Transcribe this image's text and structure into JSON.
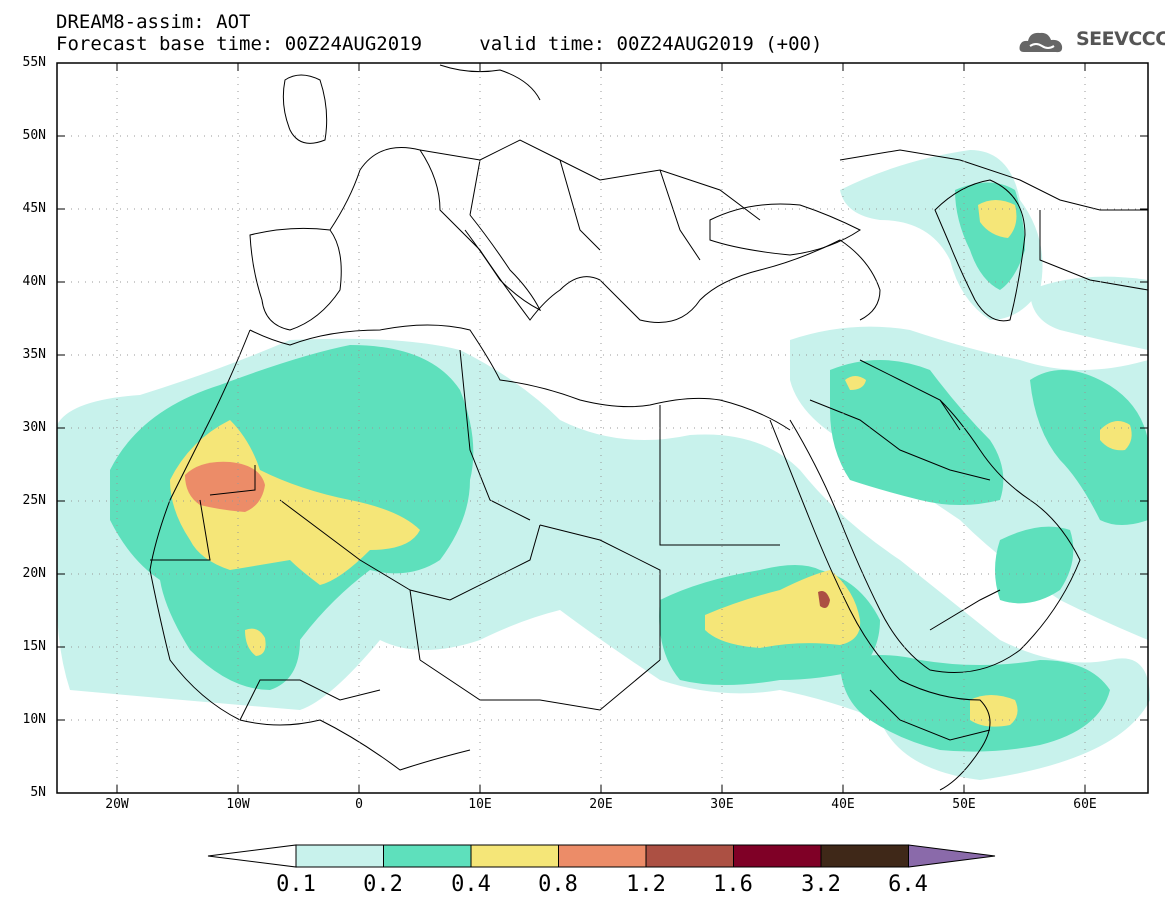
{
  "header": {
    "title": "DREAM8-assim: AOT",
    "base_time_label": "Forecast base time: 00Z24AUG2019",
    "valid_time_label": "valid time: 00Z24AUG2019 (+00)",
    "logo_text": "SEEVCCC"
  },
  "map": {
    "lat_labels": [
      "55N",
      "50N",
      "45N",
      "40N",
      "35N",
      "30N",
      "25N",
      "20N",
      "15N",
      "10N",
      "5N"
    ],
    "lon_labels": [
      "20W",
      "10W",
      "0",
      "10E",
      "20E",
      "30E",
      "40E",
      "50E",
      "60E"
    ]
  },
  "colorbar": {
    "labels": [
      "0.1",
      "0.2",
      "0.4",
      "0.8",
      "1.2",
      "1.6",
      "3.2",
      "6.4"
    ],
    "colors": [
      "#ffffff",
      "#c8f2ec",
      "#5ee0bc",
      "#f5e678",
      "#ec8c68",
      "#ac5043",
      "#7f0026",
      "#3f2818",
      "#8a6aaa"
    ]
  },
  "colors": {
    "level_0_1": "#c8f2ec",
    "level_0_2": "#5ee0bc",
    "level_0_4": "#f5e678",
    "level_0_8": "#ec8c68",
    "level_1_2": "#ac5043"
  }
}
